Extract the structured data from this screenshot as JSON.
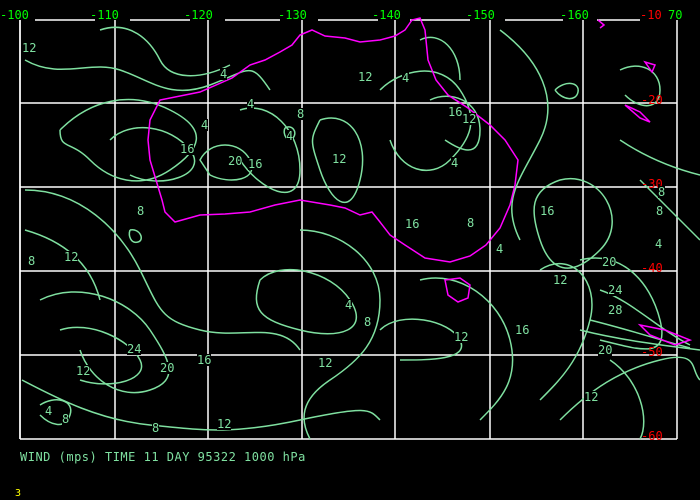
{
  "top_axis_labels": [
    "-100",
    "-110",
    "-120",
    "-130",
    "-140",
    "-150",
    "-160"
  ],
  "top_right_labels": {
    "lat": "-10",
    "lon": "70"
  },
  "right_axis_labels": [
    "-20",
    "-30",
    "-40",
    "-50",
    "-60"
  ],
  "contour_labels": [
    "12",
    "4",
    "4",
    "12",
    "4",
    "16",
    "12",
    "16",
    "20",
    "16",
    "4",
    "12",
    "8",
    "4",
    "8",
    "16",
    "8",
    "4",
    "16",
    "8",
    "12",
    "4",
    "20",
    "24",
    "28",
    "12",
    "20",
    "8",
    "16",
    "12",
    "24",
    "20",
    "16",
    "12",
    "12",
    "4",
    "8",
    "12",
    "8",
    "12",
    "8",
    "4",
    "8",
    "4"
  ],
  "caption": "WIND (mps) TIME 11 DAY 95322 1000 hPa",
  "page_number": "3",
  "colors": {
    "grid": "#ffffff",
    "contour": "#7fe0a0",
    "coastline": "#ff00ff",
    "lon_label": "#00ff00",
    "lat_label": "#ff0000",
    "page_number": "#ffff00"
  }
}
